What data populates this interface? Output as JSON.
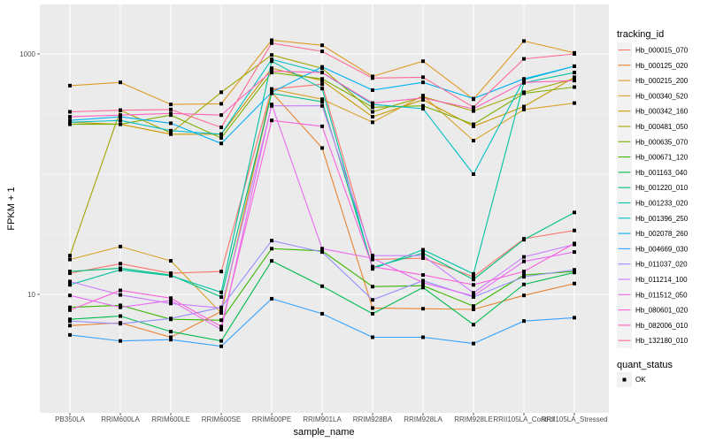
{
  "chart_data": {
    "type": "line",
    "title": "",
    "xlabel": "sample_name",
    "ylabel": "FPKM + 1",
    "yscale": "log10",
    "ylim": [
      2.6,
      2300
    ],
    "yticks": [
      10,
      1000
    ],
    "ytick_labels": [
      "10",
      "1000"
    ],
    "grid": true,
    "legend_position": "right",
    "categories": [
      "PB350LA",
      "RRIM600LA",
      "RRIM600LE",
      "RRIM600SE",
      "RRIM600PE",
      "RRIM901LA",
      "RRIM928BA",
      "RRIM928LA",
      "RRIM928LE",
      "RRII105LA_Control",
      "RRII105LA_Stressed"
    ],
    "series": [
      {
        "name": "Hb_000015_070",
        "color": "#F8766D",
        "values": [
          15,
          18,
          15,
          15.5,
          510,
          560,
          19.5,
          20,
          14,
          29,
          34
        ]
      },
      {
        "name": "Hb_000125_020",
        "color": "#EA8331",
        "values": [
          5.5,
          5.8,
          4.4,
          7.2,
          480,
          165,
          7.7,
          7.6,
          7.5,
          9.8,
          12.3
        ]
      },
      {
        "name": "Hb_000215_200",
        "color": "#E09A26",
        "values": [
          545,
          580,
          380,
          385,
          1300,
          1180,
          650,
          870,
          420,
          1280,
          1020
        ]
      },
      {
        "name": "Hb_000340_520",
        "color": "#D8A32B",
        "values": [
          19.5,
          25,
          19,
          7,
          510,
          420,
          270,
          450,
          190,
          345,
          390
        ]
      },
      {
        "name": "Hb_000342_160",
        "color": "#C99800",
        "values": [
          270,
          260,
          215,
          215,
          760,
          600,
          300,
          415,
          250,
          365,
          640
        ]
      },
      {
        "name": "Hb_000481_050",
        "color": "#A3A500",
        "values": [
          21,
          340,
          220,
          480,
          980,
          760,
          330,
          440,
          335,
          480,
          620
        ]
      },
      {
        "name": "Hb_000635_070",
        "color": "#7CAE00",
        "values": [
          260,
          260,
          310,
          200,
          700,
          620,
          360,
          370,
          260,
          470,
          530
        ]
      },
      {
        "name": "Hb_000671_120",
        "color": "#39B600",
        "values": [
          7.8,
          8.1,
          6.2,
          6.1,
          24,
          23,
          11.6,
          11.8,
          8.0,
          14.5,
          15.5
        ]
      },
      {
        "name": "Hb_001163_040",
        "color": "#00BB4E",
        "values": [
          6.2,
          6.6,
          4.9,
          4.1,
          19,
          11.7,
          6.9,
          11.4,
          5.6,
          12.1,
          15.2
        ]
      },
      {
        "name": "Hb_001220_010",
        "color": "#00BF7D",
        "values": [
          15.5,
          16.5,
          14.5,
          9.5,
          470,
          400,
          16.8,
          22,
          13.3,
          28.5,
          48
        ]
      },
      {
        "name": "Hb_001233_020",
        "color": "#00C1A3",
        "values": [
          12,
          16,
          14.3,
          10.4,
          870,
          515,
          16.3,
          23.5,
          14.8,
          575,
          700
        ]
      },
      {
        "name": "Hb_001396_250",
        "color": "#00BFC4",
        "values": [
          270,
          280,
          230,
          215,
          900,
          700,
          380,
          350,
          100,
          610,
          790
        ]
      },
      {
        "name": "Hb_002078_260",
        "color": "#00B0F6",
        "values": [
          280,
          300,
          265,
          180,
          480,
          780,
          500,
          580,
          425,
          620,
          790
        ]
      },
      {
        "name": "Hb_004669_030",
        "color": "#35A2FF",
        "values": [
          4.6,
          4.1,
          4.2,
          3.7,
          9.2,
          6.9,
          4.4,
          4.4,
          3.9,
          6.0,
          6.4
        ]
      },
      {
        "name": "Hb_011037_020",
        "color": "#9590FF",
        "values": [
          6,
          5.7,
          6.3,
          7.8,
          28,
          22.5,
          9,
          13,
          9.5,
          14,
          16
        ]
      },
      {
        "name": "Hb_011214_100",
        "color": "#C77CFF",
        "values": [
          12.8,
          9.9,
          8.4,
          7.7,
          370,
          370,
          21,
          21,
          10.3,
          20.5,
          26
        ]
      },
      {
        "name": "Hb_011512_050",
        "color": "#E76BF3",
        "values": [
          9.8,
          7.8,
          8.9,
          5.1,
          380,
          24,
          20,
          12.5,
          9.7,
          18.8,
          22.5
        ]
      },
      {
        "name": "Hb_080601_020",
        "color": "#FA62DB",
        "values": [
          7.4,
          10.8,
          9.3,
          5.4,
          280,
          250,
          17,
          14.5,
          12,
          15.5,
          26.5
        ]
      },
      {
        "name": "Hb_082006_010",
        "color": "#FF62BC",
        "values": [
          300,
          310,
          320,
          310,
          720,
          700,
          390,
          430,
          350,
          580,
          600
        ]
      },
      {
        "name": "Hb_132180_010",
        "color": "#FF6C91",
        "values": [
          330,
          340,
          345,
          245,
          1230,
          1050,
          630,
          640,
          360,
          910,
          1000
        ]
      }
    ],
    "legend": {
      "color_title": "tracking_id",
      "shape_title": "quant_status",
      "shape_entries": [
        "OK"
      ]
    }
  }
}
